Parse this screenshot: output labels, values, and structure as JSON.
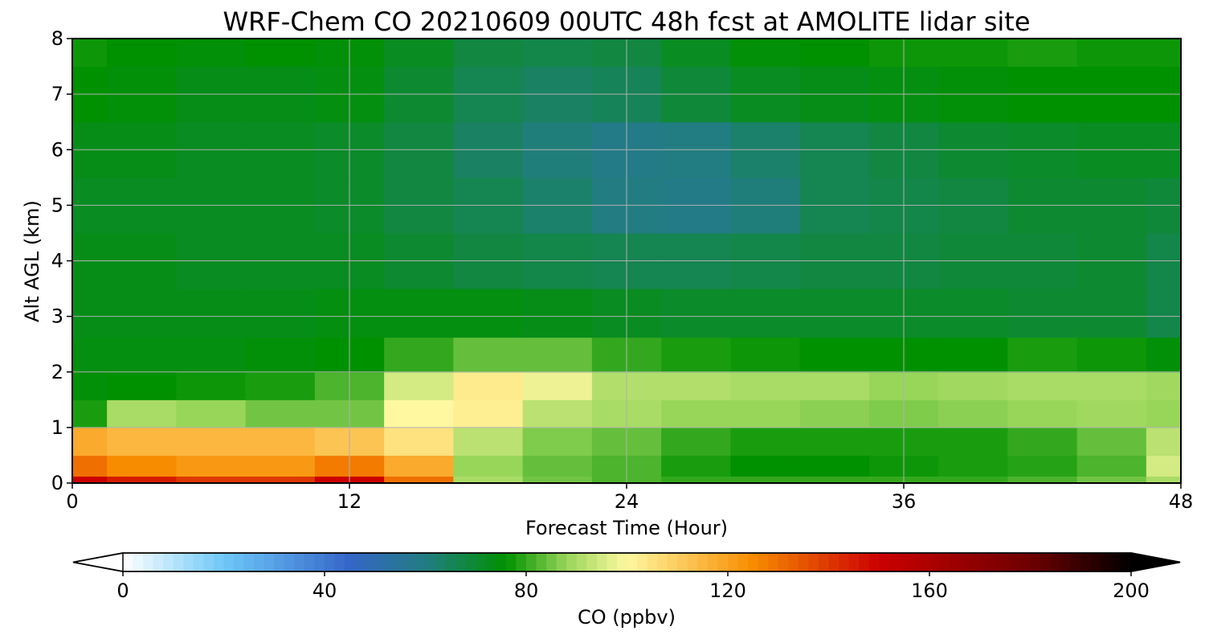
{
  "chart_data": {
    "type": "heatmap",
    "title": "WRF-Chem CO  20210609 00UTC 48h fcst at AMOLITE lidar site",
    "xlabel": "Forecast Time (Hour)",
    "ylabel": "Alt AGL (km)",
    "xlim": [
      0,
      48
    ],
    "ylim": [
      0,
      8
    ],
    "xticks": [
      "0",
      "12",
      "24",
      "36",
      "48"
    ],
    "yticks": [
      "0",
      "1",
      "2",
      "3",
      "4",
      "5",
      "6",
      "7",
      "8"
    ],
    "grid": true,
    "x": [
      0,
      3,
      6,
      9,
      12,
      15,
      18,
      21,
      24,
      27,
      30,
      33,
      36,
      39,
      42,
      45,
      48
    ],
    "y": [
      0,
      0.25,
      0.75,
      1.25,
      1.75,
      2.25,
      3,
      4,
      5,
      6,
      7,
      8
    ],
    "values": [
      [
        150,
        145,
        140,
        140,
        150,
        130,
        90,
        85,
        82,
        80,
        80,
        80,
        80,
        80,
        82,
        85,
        90
      ],
      [
        130,
        125,
        122,
        122,
        128,
        118,
        88,
        84,
        82,
        78,
        76,
        76,
        77,
        78,
        79,
        82,
        95
      ],
      [
        118,
        115,
        115,
        115,
        112,
        105,
        92,
        86,
        84,
        80,
        78,
        78,
        78,
        78,
        80,
        84,
        92
      ],
      [
        78,
        90,
        88,
        85,
        85,
        100,
        102,
        92,
        90,
        88,
        88,
        87,
        86,
        87,
        88,
        89,
        88
      ],
      [
        75,
        76,
        77,
        78,
        82,
        95,
        103,
        98,
        91,
        91,
        90,
        90,
        88,
        89,
        90,
        90,
        89
      ],
      [
        74,
        74,
        74,
        75,
        76,
        80,
        84,
        84,
        80,
        78,
        77,
        76,
        76,
        76,
        78,
        77,
        75
      ],
      [
        73,
        73,
        73,
        73,
        74,
        74,
        74,
        73,
        72,
        71,
        71,
        71,
        71,
        71,
        70,
        70,
        67
      ],
      [
        73,
        73,
        72,
        72,
        72,
        70,
        68,
        67,
        66,
        66,
        67,
        68,
        68,
        69,
        69,
        70,
        67
      ],
      [
        72,
        72,
        72,
        72,
        71,
        68,
        66,
        63,
        60,
        59,
        61,
        66,
        67,
        68,
        70,
        70,
        69
      ],
      [
        73,
        73,
        72,
        72,
        71,
        68,
        64,
        61,
        59,
        60,
        63,
        66,
        68,
        70,
        71,
        72,
        72
      ],
      [
        76,
        75,
        73,
        73,
        74,
        70,
        66,
        64,
        65,
        69,
        72,
        73,
        74,
        75,
        76,
        76,
        76
      ],
      [
        77,
        76,
        75,
        76,
        75,
        72,
        68,
        67,
        68,
        72,
        75,
        76,
        77,
        77,
        78,
        77,
        77
      ]
    ],
    "colorbar": {
      "label": "CO  (ppbv)",
      "min": 0,
      "max": 200,
      "ticks": [
        "0",
        "40",
        "80",
        "120",
        "160",
        "200"
      ],
      "extend": "both",
      "stops": [
        {
          "v": 0,
          "c": "#ffffff"
        },
        {
          "v": 20,
          "c": "#6ec8f8"
        },
        {
          "v": 45,
          "c": "#3466c8"
        },
        {
          "v": 60,
          "c": "#227d82"
        },
        {
          "v": 76,
          "c": "#009100"
        },
        {
          "v": 88,
          "c": "#98d65a"
        },
        {
          "v": 100,
          "c": "#fff8a0"
        },
        {
          "v": 125,
          "c": "#f88c00"
        },
        {
          "v": 150,
          "c": "#cc0000"
        },
        {
          "v": 180,
          "c": "#6e0000"
        },
        {
          "v": 200,
          "c": "#000000"
        }
      ]
    }
  }
}
